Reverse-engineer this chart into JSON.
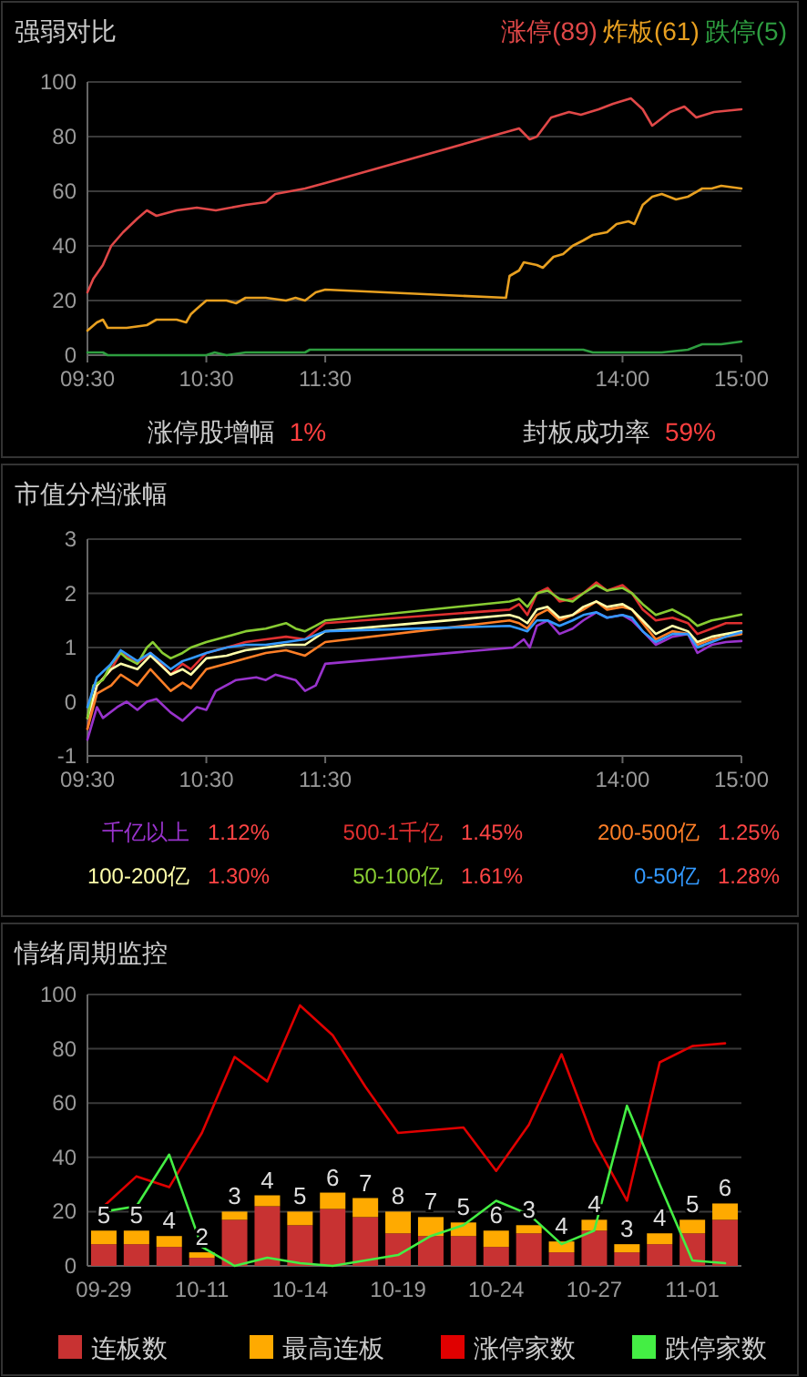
{
  "chart_data": [
    {
      "type": "line",
      "title": "强弱对比",
      "legend": "top right",
      "grid": "y",
      "xlim": [
        9.5,
        15
      ],
      "xticks": [
        {
          "value": 9.5,
          "label": "09:30"
        },
        {
          "value": 10.5,
          "label": "10:30"
        },
        {
          "value": 11.5,
          "label": "11:30"
        },
        {
          "value": 14,
          "label": "14:00"
        },
        {
          "value": 15,
          "label": "15:00"
        }
      ],
      "ylim": [
        0,
        100
      ],
      "yticks": [
        0,
        20,
        40,
        60,
        80,
        100
      ],
      "annotations": [
        "涨停股增幅 1%",
        "封板成功率 59%"
      ],
      "series": [
        {
          "name": "涨停(89)",
          "color": "#e04848",
          "x": [
            9.5,
            9.55,
            9.63,
            9.7,
            9.8,
            9.92,
            10,
            10.08,
            10.25,
            10.42,
            10.58,
            10.83,
            11,
            11.08,
            11.33,
            11.5,
            13.13,
            13.22,
            13.28,
            13.4,
            13.55,
            13.65,
            13.8,
            13.92,
            14.07,
            14.17,
            14.25,
            14.4,
            14.52,
            14.62,
            14.77,
            15
          ],
          "values": [
            23,
            28,
            33,
            40,
            45,
            50,
            53,
            51,
            53,
            54,
            53,
            55,
            56,
            59,
            61,
            63,
            83,
            79,
            80,
            87,
            89,
            88,
            90,
            92,
            94,
            90,
            84,
            89,
            91,
            87,
            89,
            90
          ]
        },
        {
          "name": "炸板(61)",
          "color": "#e8a020",
          "x": [
            9.5,
            9.58,
            9.63,
            9.67,
            9.83,
            10,
            10.08,
            10.25,
            10.33,
            10.37,
            10.42,
            10.5,
            10.67,
            10.75,
            10.83,
            11,
            11.17,
            11.25,
            11.33,
            11.42,
            11.5,
            13.02,
            13.05,
            13.13,
            13.17,
            13.28,
            13.33,
            13.42,
            13.5,
            13.58,
            13.67,
            13.75,
            13.87,
            13.95,
            14.05,
            14.1,
            14.17,
            14.25,
            14.33,
            14.45,
            14.55,
            14.67,
            14.75,
            14.83,
            15
          ],
          "values": [
            9,
            12,
            13,
            10,
            10,
            11,
            13,
            13,
            12,
            15,
            17,
            20,
            20,
            19,
            21,
            21,
            20,
            21,
            20,
            23,
            24,
            21,
            29,
            31,
            34,
            33,
            32,
            36,
            37,
            40,
            42,
            44,
            45,
            48,
            49,
            48,
            55,
            58,
            59,
            57,
            58,
            61,
            61,
            62,
            61
          ]
        },
        {
          "name": "跌停(5)",
          "color": "#2e9e40",
          "x": [
            9.5,
            9.63,
            9.67,
            10.5,
            10.57,
            10.67,
            10.83,
            11.33,
            11.37,
            13.67,
            13.75,
            14.08,
            14.33,
            14.55,
            14.67,
            14.83,
            15
          ],
          "values": [
            1,
            1,
            0,
            0,
            1,
            0,
            1,
            1,
            2,
            2,
            1,
            1,
            1,
            2,
            4,
            4,
            5
          ]
        }
      ]
    },
    {
      "type": "line",
      "title": "市值分档涨幅",
      "legend": "bottom",
      "grid": "y",
      "xlim": [
        9.5,
        15
      ],
      "xticks": [
        {
          "value": 9.5,
          "label": "09:30"
        },
        {
          "value": 10.5,
          "label": "10:30"
        },
        {
          "value": 11.5,
          "label": "11:30"
        },
        {
          "value": 14,
          "label": "14:00"
        },
        {
          "value": 15,
          "label": "15:00"
        }
      ],
      "ylim": [
        -1,
        3
      ],
      "yticks": [
        -1,
        0,
        1,
        2,
        3
      ],
      "annotations": [
        "1.12%",
        "1.45%",
        "1.25%",
        "1.30%",
        "1.61%",
        "1.28%"
      ],
      "series": [
        {
          "name": "千亿以上",
          "color": "#9933cc",
          "x": [
            9.5,
            9.58,
            9.63,
            9.75,
            9.83,
            9.92,
            10,
            10.08,
            10.2,
            10.3,
            10.42,
            10.5,
            10.58,
            10.75,
            10.92,
            11,
            11.08,
            11.25,
            11.33,
            11.42,
            11.5,
            13.08,
            13.17,
            13.22,
            13.28,
            13.37,
            13.47,
            13.58,
            13.67,
            13.78,
            13.87,
            14,
            14.08,
            14.17,
            14.28,
            14.42,
            14.55,
            14.63,
            14.75,
            14.87,
            15
          ],
          "values": [
            -0.7,
            -0.1,
            -0.3,
            -0.1,
            0.0,
            -0.15,
            0.0,
            0.05,
            -0.2,
            -0.35,
            -0.1,
            -0.15,
            0.2,
            0.4,
            0.45,
            0.4,
            0.5,
            0.4,
            0.2,
            0.3,
            0.7,
            1.0,
            1.15,
            1.0,
            1.4,
            1.5,
            1.25,
            1.35,
            1.5,
            1.65,
            1.55,
            1.6,
            1.5,
            1.3,
            1.05,
            1.2,
            1.25,
            0.9,
            1.05,
            1.1,
            1.12
          ]
        },
        {
          "name": "500-1千亿",
          "color": "#e03030",
          "x": [
            9.5,
            9.58,
            9.7,
            9.78,
            9.92,
            10.03,
            10.2,
            10.3,
            10.37,
            10.5,
            10.67,
            10.83,
            11,
            11.17,
            11.33,
            11.5,
            13.05,
            13.13,
            13.2,
            13.28,
            13.37,
            13.47,
            13.58,
            13.67,
            13.78,
            13.87,
            14,
            14.08,
            14.17,
            14.28,
            14.42,
            14.55,
            14.63,
            14.75,
            14.87,
            15
          ],
          "values": [
            -0.5,
            0.3,
            0.6,
            0.9,
            0.7,
            0.9,
            0.5,
            0.7,
            0.6,
            0.9,
            1.0,
            1.1,
            1.15,
            1.2,
            1.15,
            1.45,
            1.7,
            1.8,
            1.6,
            2.0,
            2.1,
            1.85,
            1.9,
            2.0,
            2.2,
            2.05,
            2.15,
            2.0,
            1.7,
            1.5,
            1.55,
            1.45,
            1.25,
            1.35,
            1.45,
            1.45
          ]
        },
        {
          "name": "200-500亿",
          "color": "#ff7f27",
          "x": [
            9.5,
            9.58,
            9.7,
            9.78,
            9.92,
            10.03,
            10.2,
            10.3,
            10.37,
            10.5,
            10.67,
            10.83,
            11,
            11.17,
            11.33,
            11.5,
            13.05,
            13.13,
            13.2,
            13.28,
            13.37,
            13.47,
            13.58,
            13.67,
            13.78,
            13.87,
            14,
            14.08,
            14.17,
            14.28,
            14.42,
            14.55,
            14.63,
            14.75,
            14.87,
            15
          ],
          "values": [
            -0.5,
            0.15,
            0.3,
            0.5,
            0.3,
            0.6,
            0.2,
            0.35,
            0.25,
            0.6,
            0.7,
            0.8,
            0.9,
            0.95,
            0.85,
            1.1,
            1.5,
            1.45,
            1.35,
            1.6,
            1.7,
            1.5,
            1.6,
            1.7,
            1.85,
            1.7,
            1.75,
            1.7,
            1.45,
            1.15,
            1.3,
            1.25,
            1.05,
            1.15,
            1.2,
            1.25
          ]
        },
        {
          "name": "100-200亿",
          "color": "#ffffaa",
          "x": [
            9.5,
            9.58,
            9.7,
            9.78,
            9.92,
            10.03,
            10.2,
            10.3,
            10.37,
            10.5,
            10.67,
            10.83,
            11,
            11.17,
            11.33,
            11.5,
            13.05,
            13.13,
            13.2,
            13.28,
            13.37,
            13.47,
            13.58,
            13.67,
            13.78,
            13.87,
            14,
            14.08,
            14.17,
            14.28,
            14.42,
            14.55,
            14.63,
            14.75,
            14.87,
            15
          ],
          "values": [
            -0.3,
            0.3,
            0.6,
            0.7,
            0.6,
            0.85,
            0.5,
            0.6,
            0.5,
            0.8,
            0.85,
            0.95,
            1.0,
            1.05,
            1.05,
            1.3,
            1.6,
            1.55,
            1.45,
            1.7,
            1.75,
            1.55,
            1.6,
            1.75,
            1.85,
            1.75,
            1.8,
            1.7,
            1.5,
            1.25,
            1.4,
            1.3,
            1.1,
            1.2,
            1.25,
            1.3
          ]
        },
        {
          "name": "50-100亿",
          "color": "#88cc33",
          "x": [
            9.5,
            9.55,
            9.63,
            9.7,
            9.78,
            9.83,
            9.92,
            10,
            10.05,
            10.13,
            10.2,
            10.3,
            10.37,
            10.5,
            10.67,
            10.83,
            11,
            11.17,
            11.25,
            11.33,
            11.42,
            11.5,
            13.05,
            13.13,
            13.2,
            13.28,
            13.37,
            13.47,
            13.58,
            13.67,
            13.78,
            13.87,
            14,
            14.08,
            14.17,
            14.28,
            14.42,
            14.55,
            14.63,
            14.75,
            14.87,
            15
          ],
          "values": [
            -0.3,
            0.3,
            0.4,
            0.7,
            0.9,
            0.8,
            0.7,
            1.0,
            1.1,
            0.9,
            0.8,
            0.9,
            1.0,
            1.1,
            1.2,
            1.3,
            1.35,
            1.45,
            1.35,
            1.3,
            1.4,
            1.5,
            1.85,
            1.9,
            1.75,
            2.0,
            2.05,
            1.9,
            1.85,
            2.0,
            2.15,
            2.05,
            2.1,
            2.0,
            1.8,
            1.6,
            1.7,
            1.55,
            1.4,
            1.5,
            1.55,
            1.61
          ]
        },
        {
          "name": "0-50亿",
          "color": "#3399ff",
          "x": [
            9.5,
            9.58,
            9.7,
            9.78,
            9.92,
            10.03,
            10.2,
            10.3,
            10.37,
            10.5,
            10.67,
            10.83,
            11,
            11.17,
            11.33,
            11.5,
            13.05,
            13.13,
            13.2,
            13.28,
            13.37,
            13.47,
            13.58,
            13.67,
            13.78,
            13.87,
            14,
            14.08,
            14.17,
            14.28,
            14.42,
            14.55,
            14.63,
            14.75,
            14.87,
            15
          ],
          "values": [
            -0.1,
            0.45,
            0.7,
            0.95,
            0.75,
            0.9,
            0.6,
            0.75,
            0.8,
            0.9,
            1.0,
            1.05,
            1.05,
            1.1,
            1.15,
            1.3,
            1.4,
            1.35,
            1.3,
            1.5,
            1.5,
            1.4,
            1.5,
            1.6,
            1.65,
            1.55,
            1.6,
            1.55,
            1.3,
            1.1,
            1.25,
            1.25,
            1.0,
            1.1,
            1.2,
            1.28
          ]
        }
      ]
    },
    {
      "type": "bar",
      "title": "情绪周期监控",
      "stacked": true,
      "legend": "bottom",
      "grid": "y",
      "categories": [
        "09-29",
        null,
        null,
        "10-11",
        null,
        null,
        "10-14",
        null,
        null,
        "10-19",
        null,
        null,
        "10-24",
        null,
        null,
        "10-27",
        null,
        null,
        "11-01",
        null
      ],
      "ylim": [
        0,
        100
      ],
      "yticks": [
        0,
        20,
        40,
        60,
        80,
        100
      ],
      "series": [
        {
          "name": "连板数",
          "type": "bar",
          "color": "#c83232",
          "values": [
            8,
            8,
            7,
            3,
            17,
            22,
            15,
            21,
            18,
            12,
            11,
            11,
            7,
            12,
            5,
            13,
            5,
            8,
            12,
            17
          ]
        },
        {
          "name": "最高连板",
          "type": "bar",
          "color": "#ffaa00",
          "values": [
            5,
            5,
            4,
            2,
            3,
            4,
            5,
            6,
            7,
            8,
            7,
            5,
            6,
            3,
            4,
            4,
            3,
            4,
            5,
            6
          ],
          "value_labels": [
            "5",
            "5",
            "4",
            "2",
            "3",
            "4",
            "5",
            "6",
            "7",
            "8",
            "7",
            "5",
            "6",
            "3",
            "4",
            "4",
            "3",
            "4",
            "5",
            "6"
          ]
        },
        {
          "name": "涨停家数",
          "type": "line",
          "color": "#e00000",
          "values": [
            22,
            33,
            29,
            49,
            77,
            68,
            96,
            85,
            66,
            49,
            50,
            51,
            35,
            52,
            78,
            46,
            24,
            75,
            81,
            82
          ]
        },
        {
          "name": "跌停家数",
          "type": "line",
          "color": "#44ee44",
          "values": [
            20,
            22,
            41,
            7,
            0,
            3,
            1,
            0,
            2,
            4,
            11,
            15,
            24,
            19,
            8,
            13,
            59,
            30,
            2,
            1
          ]
        }
      ]
    }
  ]
}
